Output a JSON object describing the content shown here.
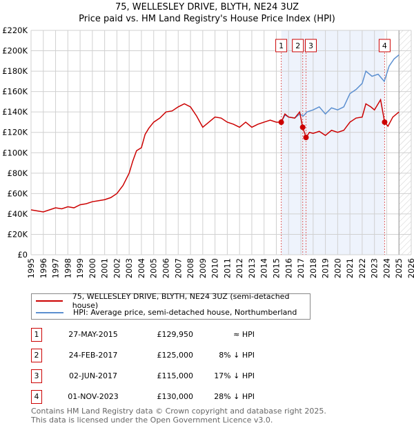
{
  "title_line1": "75, WELLESLEY DRIVE, BLYTH, NE24 3UZ",
  "title_line2": "Price paid vs. HM Land Registry's House Price Index (HPI)",
  "chart_data": {
    "type": "line",
    "ylim": [
      0,
      220000
    ],
    "xlim": [
      1995,
      2026
    ],
    "y_ticks": [
      0,
      20000,
      40000,
      60000,
      80000,
      100000,
      120000,
      140000,
      160000,
      180000,
      200000,
      220000
    ],
    "y_tick_labels": [
      "£0",
      "£20K",
      "£40K",
      "£60K",
      "£80K",
      "£100K",
      "£120K",
      "£140K",
      "£160K",
      "£180K",
      "£200K",
      "£220K"
    ],
    "x_ticks": [
      "1995",
      "1996",
      "1997",
      "1998",
      "1999",
      "2000",
      "2001",
      "2002",
      "2003",
      "2004",
      "2005",
      "2006",
      "2007",
      "2008",
      "2009",
      "2010",
      "2011",
      "2012",
      "2013",
      "2014",
      "2015",
      "2016",
      "2017",
      "2018",
      "2019",
      "2020",
      "2021",
      "2022",
      "2023",
      "2024",
      "2025",
      "2026"
    ],
    "grid": true,
    "shaded_range": [
      2015.4,
      2023.83
    ],
    "hatched_from": 2025.0,
    "series": [
      {
        "name": "75, WELLESLEY DRIVE, BLYTH, NE24 3UZ (semi-detached house)",
        "color": "#cc0000",
        "x": [
          1995,
          1995.5,
          1996,
          1996.5,
          1997,
          1997.5,
          1998,
          1998.5,
          1999,
          1999.5,
          2000,
          2000.5,
          2001,
          2001.5,
          2002,
          2002.5,
          2003,
          2003.3,
          2003.6,
          2004,
          2004.3,
          2004.6,
          2005,
          2005.5,
          2006,
          2006.5,
          2007,
          2007.5,
          2008,
          2008.5,
          2009,
          2009.5,
          2010,
          2010.5,
          2011,
          2011.5,
          2012,
          2012.5,
          2013,
          2013.5,
          2014,
          2014.5,
          2015,
          2015.4,
          2015.7,
          2016,
          2016.5,
          2016.9,
          2017.15,
          2017.42,
          2017.7,
          2018,
          2018.5,
          2019,
          2019.5,
          2020,
          2020.5,
          2021,
          2021.5,
          2022,
          2022.3,
          2022.7,
          2023,
          2023.5,
          2023.83,
          2024.1,
          2024.5,
          2025
        ],
        "values": [
          44000,
          43000,
          42000,
          44000,
          46000,
          45000,
          47000,
          46000,
          49000,
          50000,
          52000,
          53000,
          54000,
          56000,
          60000,
          68000,
          80000,
          92000,
          102000,
          105000,
          118000,
          124000,
          130000,
          134000,
          140000,
          141000,
          145000,
          148000,
          145000,
          136000,
          125000,
          130000,
          135000,
          134000,
          130000,
          128000,
          125000,
          130000,
          125000,
          128000,
          130000,
          132000,
          130000,
          129950,
          138000,
          135000,
          134000,
          140000,
          125000,
          115000,
          120000,
          119000,
          121000,
          117000,
          122000,
          120000,
          122000,
          130000,
          134000,
          135000,
          148000,
          145000,
          142000,
          152000,
          130000,
          126000,
          135000,
          140000
        ]
      },
      {
        "name": "HPI: Average price, semi-detached house, Northumberland",
        "color": "#5b8fd0",
        "x": [
          2015.4,
          2015.7,
          2016,
          2016.5,
          2016.9,
          2017.2,
          2017.5,
          2018,
          2018.5,
          2019,
          2019.5,
          2020,
          2020.5,
          2021,
          2021.5,
          2022,
          2022.3,
          2022.8,
          2023.3,
          2023.8,
          2024.2,
          2024.6,
          2025
        ],
        "values": [
          130000,
          137000,
          135000,
          134000,
          138000,
          136000,
          140000,
          142000,
          145000,
          138000,
          144000,
          142000,
          145000,
          158000,
          162000,
          168000,
          180000,
          175000,
          177000,
          170000,
          185000,
          192000,
          196000
        ]
      }
    ],
    "sales": [
      {
        "label": "1",
        "x": 2015.4,
        "value": 129950
      },
      {
        "label": "2",
        "x": 2017.15,
        "value": 125000
      },
      {
        "label": "3",
        "x": 2017.42,
        "value": 115000
      },
      {
        "label": "4",
        "x": 2023.83,
        "value": 130000
      }
    ]
  },
  "legend": {
    "red": "75, WELLESLEY DRIVE, BLYTH, NE24 3UZ (semi-detached house)",
    "blue": "HPI: Average price, semi-detached house, Northumberland"
  },
  "transactions": [
    {
      "num": "1",
      "date": "27-MAY-2015",
      "price": "£129,950",
      "hpi": "≈ HPI"
    },
    {
      "num": "2",
      "date": "24-FEB-2017",
      "price": "£125,000",
      "hpi": "8% ↓ HPI"
    },
    {
      "num": "3",
      "date": "02-JUN-2017",
      "price": "£115,000",
      "hpi": "17% ↓ HPI"
    },
    {
      "num": "4",
      "date": "01-NOV-2023",
      "price": "£130,000",
      "hpi": "28% ↓ HPI"
    }
  ],
  "footer_line1": "Contains HM Land Registry data © Crown copyright and database right 2025.",
  "footer_line2": "This data is licensed under the Open Government Licence v3.0."
}
